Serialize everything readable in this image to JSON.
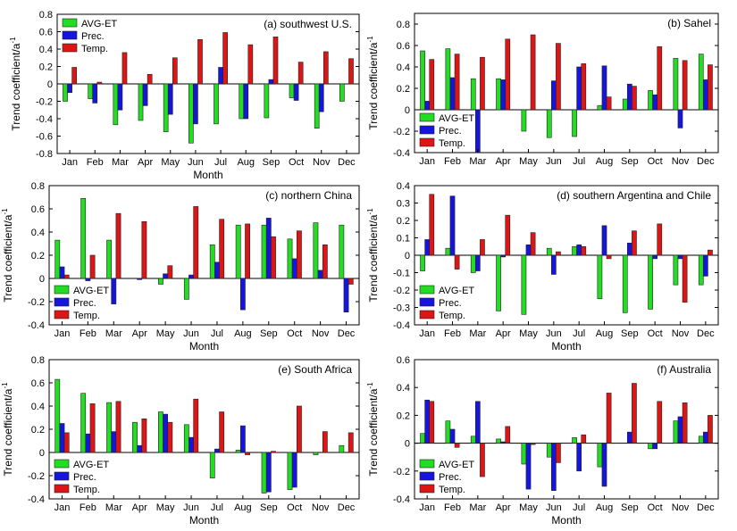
{
  "chart_data": [
    {
      "type": "bar",
      "title": "(a)  southwest U.S.",
      "xlabel": "Month",
      "ylabel": "Trend coefficient/a",
      "ylabel_sup": "-1",
      "ylim": [
        -0.8,
        0.8
      ],
      "yticks": [
        -0.8,
        -0.6,
        -0.4,
        -0.2,
        0,
        0.2,
        0.4,
        0.6,
        0.8
      ],
      "ytick_labels": [
        "-0.8",
        "-0.6",
        "-0.4",
        "-0.2",
        "0",
        "0.2",
        "0.4",
        "0.6",
        "0.8"
      ],
      "legend_position": "top-left",
      "categories": [
        "Jan",
        "Feb",
        "Mar",
        "Apr",
        "May",
        "Jun",
        "Jul",
        "Aug",
        "Sep",
        "Oct",
        "Nov",
        "Dec"
      ],
      "series": [
        {
          "name": "AVG-ET",
          "color": "#22dd22",
          "values": [
            -0.2,
            -0.17,
            -0.47,
            -0.42,
            -0.55,
            -0.68,
            -0.46,
            -0.4,
            -0.39,
            -0.16,
            -0.51,
            -0.2
          ]
        },
        {
          "name": "Prec.",
          "color": "#1515dd",
          "values": [
            -0.1,
            -0.22,
            -0.3,
            -0.25,
            -0.35,
            -0.46,
            0.19,
            -0.4,
            0.05,
            -0.19,
            -0.32,
            0
          ]
        },
        {
          "name": "Temp.",
          "color": "#dd1515",
          "values": [
            0.19,
            0.02,
            0.36,
            0.11,
            0.3,
            0.51,
            0.59,
            0.45,
            0.54,
            0.25,
            0.37,
            0.29
          ]
        }
      ]
    },
    {
      "type": "bar",
      "title": "(b)  Sahel",
      "xlabel": "",
      "ylabel": "Trend coefficient/a",
      "ylabel_sup": "-1",
      "ylim": [
        -0.4,
        0.9
      ],
      "yticks": [
        -0.4,
        -0.2,
        0,
        0.2,
        0.4,
        0.6,
        0.8
      ],
      "ytick_labels": [
        "-0.4",
        "-0.2",
        "0",
        "0.2",
        "0.4",
        "0.6",
        "0.8"
      ],
      "legend_position": "bottom-left",
      "categories": [
        "Jan",
        "Feb",
        "Mar",
        "Apr",
        "May",
        "Jun",
        "Jul",
        "Aug",
        "Sep",
        "Oct",
        "Nov",
        "Dec"
      ],
      "series": [
        {
          "name": "AVG-ET",
          "color": "#22dd22",
          "values": [
            0.55,
            0.57,
            0.29,
            0.29,
            -0.2,
            -0.26,
            -0.25,
            0.04,
            0.1,
            0.18,
            0.48,
            0.52
          ]
        },
        {
          "name": "Prec.",
          "color": "#1515dd",
          "values": [
            0.08,
            0.3,
            -0.4,
            0.28,
            0,
            0.27,
            0.4,
            0.41,
            0.24,
            0.14,
            -0.17,
            0.28
          ]
        },
        {
          "name": "Temp.",
          "color": "#dd1515",
          "values": [
            0.47,
            0.52,
            0.49,
            0.66,
            0.7,
            0.62,
            0.43,
            0.12,
            0.22,
            0.59,
            0.46,
            0.42
          ]
        }
      ]
    },
    {
      "type": "bar",
      "title": "(c)  northern China",
      "xlabel": "Month",
      "ylabel": "Trend coefficient/a",
      "ylabel_sup": "-1",
      "ylim": [
        -0.4,
        0.8
      ],
      "yticks": [
        -0.4,
        -0.2,
        0,
        0.2,
        0.4,
        0.6,
        0.8
      ],
      "ytick_labels": [
        "-0.4",
        "-0.2",
        "0",
        "0.2",
        "0.4",
        "0.6",
        "0.8"
      ],
      "legend_position": "bottom-left",
      "categories": [
        "Jan",
        "Feb",
        "Mar",
        "Apr",
        "May",
        "Jun",
        "Jul",
        "Aug",
        "Sep",
        "Oct",
        "Nov",
        "Dec"
      ],
      "series": [
        {
          "name": "AVG-ET",
          "color": "#22dd22",
          "values": [
            0.33,
            0.69,
            0.33,
            0,
            -0.05,
            -0.18,
            0.29,
            0.46,
            0.46,
            0.34,
            0.48,
            0.46
          ]
        },
        {
          "name": "Prec.",
          "color": "#1515dd",
          "values": [
            0.1,
            -0.02,
            -0.22,
            -0.01,
            0.04,
            0.03,
            0.14,
            -0.27,
            0.52,
            0.17,
            0.07,
            -0.29
          ]
        },
        {
          "name": "Temp.",
          "color": "#dd1515",
          "values": [
            0.03,
            0.2,
            0.56,
            0.49,
            0.11,
            0.62,
            0.51,
            0.47,
            0.36,
            0.41,
            0.29,
            -0.05
          ]
        }
      ]
    },
    {
      "type": "bar",
      "title": "(d)  southern Argentina and Chile",
      "xlabel": "Month",
      "ylabel": "Trend coefficient/a",
      "ylabel_sup": "-1",
      "ylim": [
        -0.4,
        0.4
      ],
      "yticks": [
        -0.4,
        -0.3,
        -0.2,
        -0.1,
        0,
        0.1,
        0.2,
        0.3,
        0.4
      ],
      "ytick_labels": [
        "-0.4",
        "-0.3",
        "-0.2",
        "-0.1",
        "0",
        "0.1",
        "0.2",
        "0.3",
        "0.4"
      ],
      "legend_position": "bottom-left",
      "categories": [
        "Jan",
        "Feb",
        "Mar",
        "Apr",
        "May",
        "Jun",
        "Jul",
        "Aug",
        "Sep",
        "Oct",
        "Nov",
        "Dec"
      ],
      "series": [
        {
          "name": "AVG-ET",
          "color": "#22dd22",
          "values": [
            -0.09,
            0.04,
            -0.1,
            -0.32,
            -0.34,
            0.04,
            0.05,
            -0.25,
            -0.33,
            -0.31,
            -0.17,
            -0.17
          ]
        },
        {
          "name": "Prec.",
          "color": "#1515dd",
          "values": [
            0.09,
            0.34,
            -0.09,
            -0.01,
            0.06,
            -0.11,
            0.06,
            0.17,
            0.07,
            -0.02,
            -0.02,
            -0.12
          ]
        },
        {
          "name": "Temp.",
          "color": "#dd1515",
          "values": [
            0.35,
            -0.08,
            0.09,
            0.23,
            0.13,
            0.02,
            0.05,
            -0.02,
            0.14,
            0.18,
            -0.27,
            0.03
          ]
        }
      ]
    },
    {
      "type": "bar",
      "title": "(e)  South Africa",
      "xlabel": "Month",
      "ylabel": "Trend coefficient/a",
      "ylabel_sup": "-1",
      "ylim": [
        -0.4,
        0.8
      ],
      "yticks": [
        -0.4,
        -0.2,
        0,
        0.2,
        0.4,
        0.6,
        0.8
      ],
      "ytick_labels": [
        "-0.4",
        "-0.2",
        "0",
        "0.2",
        "0.4",
        "0.6",
        "0.8"
      ],
      "legend_position": "bottom-left",
      "categories": [
        "Jan",
        "Feb",
        "Mar",
        "Apr",
        "May",
        "Jun",
        "Jul",
        "Aug",
        "Sep",
        "Oct",
        "Nov",
        "Dec"
      ],
      "series": [
        {
          "name": "AVG-ET",
          "color": "#22dd22",
          "values": [
            0.63,
            0.51,
            0.43,
            0.26,
            0.35,
            0.24,
            -0.22,
            0.02,
            -0.35,
            -0.32,
            -0.02,
            0.06
          ]
        },
        {
          "name": "Prec.",
          "color": "#1515dd",
          "values": [
            0.25,
            0.16,
            0.18,
            0.06,
            0.33,
            0.13,
            0.03,
            0.23,
            -0.34,
            -0.3,
            0,
            0
          ]
        },
        {
          "name": "Temp.",
          "color": "#dd1515",
          "values": [
            0.17,
            0.42,
            0.44,
            0.29,
            0.26,
            0.46,
            0.35,
            -0.02,
            0.01,
            0.4,
            0.18,
            0.17
          ]
        }
      ]
    },
    {
      "type": "bar",
      "title": "(f)  Australia",
      "xlabel": "Month",
      "ylabel": "Trend coefficient/a",
      "ylabel_sup": "-1",
      "ylim": [
        -0.4,
        0.6
      ],
      "yticks": [
        -0.4,
        -0.2,
        0,
        0.2,
        0.4,
        0.6
      ],
      "ytick_labels": [
        "-0.4",
        "-0.2",
        "0",
        "0.2",
        "0.4",
        "0.6"
      ],
      "legend_position": "bottom-left",
      "categories": [
        "Jan",
        "Feb",
        "Mar",
        "Apr",
        "May",
        "Jun",
        "Jul",
        "Aug",
        "Sep",
        "Oct",
        "Nov",
        "Dec"
      ],
      "series": [
        {
          "name": "AVG-ET",
          "color": "#22dd22",
          "values": [
            0.07,
            0.16,
            0.05,
            0.03,
            -0.15,
            -0.1,
            0.04,
            -0.17,
            0,
            -0.04,
            0.16,
            0.05
          ]
        },
        {
          "name": "Prec.",
          "color": "#1515dd",
          "values": [
            0.31,
            0.1,
            0.3,
            0.01,
            -0.33,
            -0.34,
            -0.2,
            -0.31,
            0.08,
            -0.04,
            0.19,
            0.08
          ]
        },
        {
          "name": "Temp.",
          "color": "#dd1515",
          "values": [
            0.3,
            -0.03,
            -0.24,
            0.12,
            -0.01,
            -0.14,
            0.06,
            0.36,
            0.43,
            0.3,
            0.29,
            0.2
          ]
        }
      ]
    }
  ]
}
